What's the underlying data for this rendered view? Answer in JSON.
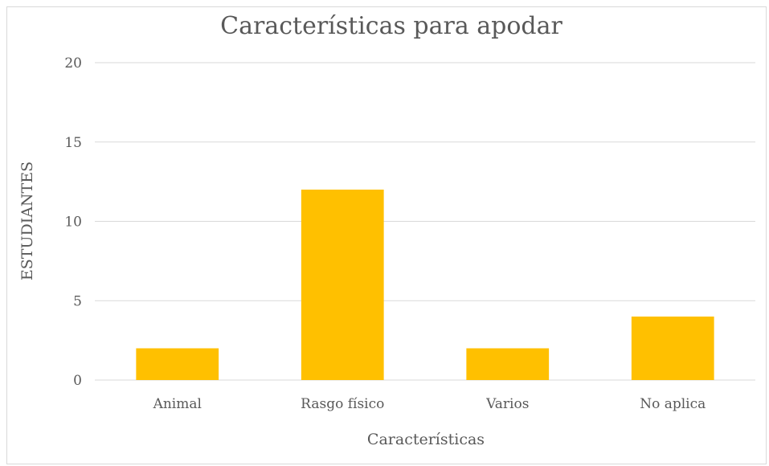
{
  "chart_data": {
    "type": "bar",
    "title": "Características para apodar",
    "xlabel": "Características",
    "ylabel": "ESTUDIANTES",
    "categories": [
      "Animal",
      "Rasgo físico",
      "Varios",
      "No aplica"
    ],
    "values": [
      2,
      12,
      2,
      4
    ],
    "ylim": [
      0,
      20
    ],
    "yticks": [
      0,
      5,
      10,
      15,
      20
    ],
    "grid": true,
    "legend": "none",
    "bar_color": "#FFC000"
  }
}
